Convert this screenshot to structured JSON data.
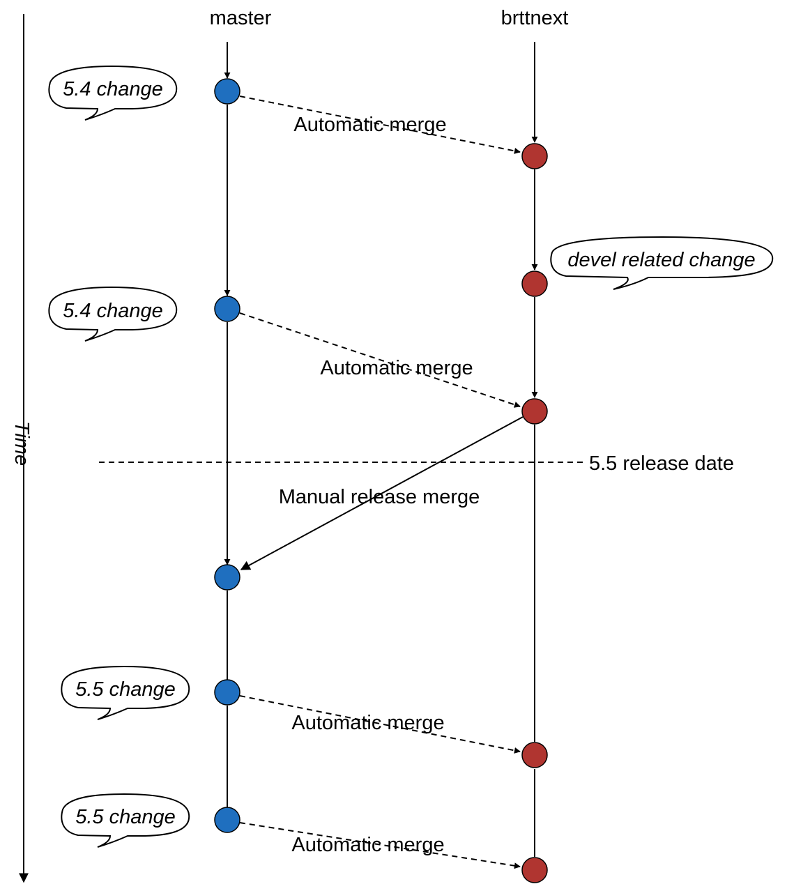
{
  "branches": {
    "master": {
      "label": "master",
      "color": "#1f6fbf"
    },
    "next": {
      "label": "brttnext",
      "color": "#b03530"
    }
  },
  "axis": {
    "time_label": "Time"
  },
  "release": {
    "label": "5.5 release date"
  },
  "edges": [
    {
      "label": "Automatic merge",
      "style": "dashed",
      "from": "master",
      "to": "next"
    },
    {
      "label": "Automatic merge",
      "style": "dashed",
      "from": "master",
      "to": "next"
    },
    {
      "label": "Manual release merge",
      "style": "solid",
      "from": "next",
      "to": "master"
    },
    {
      "label": "Automatic merge",
      "style": "dashed",
      "from": "master",
      "to": "next"
    },
    {
      "label": "Automatic merge",
      "style": "dashed",
      "from": "master",
      "to": "next"
    }
  ],
  "bubbles": [
    {
      "text": "5.4 change"
    },
    {
      "text": "devel related change"
    },
    {
      "text": "5.4 change"
    },
    {
      "text": "5.5 change"
    },
    {
      "text": "5.5 change"
    }
  ]
}
